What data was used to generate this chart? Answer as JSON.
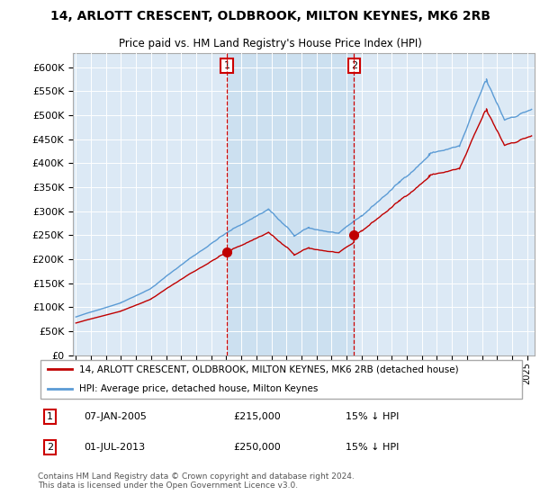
{
  "title": "14, ARLOTT CRESCENT, OLDBROOK, MILTON KEYNES, MK6 2RB",
  "subtitle": "Price paid vs. HM Land Registry's House Price Index (HPI)",
  "legend_line1": "14, ARLOTT CRESCENT, OLDBROOK, MILTON KEYNES, MK6 2RB (detached house)",
  "legend_line2": "HPI: Average price, detached house, Milton Keynes",
  "annotation1_date": "07-JAN-2005",
  "annotation1_price": 215000,
  "annotation1_hpi": "15% ↓ HPI",
  "annotation2_date": "01-JUL-2013",
  "annotation2_price": 250000,
  "annotation2_hpi": "15% ↓ HPI",
  "footer": "Contains HM Land Registry data © Crown copyright and database right 2024.\nThis data is licensed under the Open Government Licence v3.0.",
  "hpi_color": "#5b9bd5",
  "sale_color": "#c00000",
  "background_color": "#ffffff",
  "plot_bg_color": "#dce9f5",
  "highlight_color": "#cce0f0",
  "annotation_box_color": "#cc0000",
  "ylim": [
    0,
    630000
  ],
  "yticks": [
    0,
    50000,
    100000,
    150000,
    200000,
    250000,
    300000,
    350000,
    400000,
    450000,
    500000,
    550000,
    600000
  ],
  "sale1_x": 2005.04,
  "sale1_y": 215000,
  "sale2_x": 2013.5,
  "sale2_y": 250000,
  "xmin": 1994.8,
  "xmax": 2025.5
}
